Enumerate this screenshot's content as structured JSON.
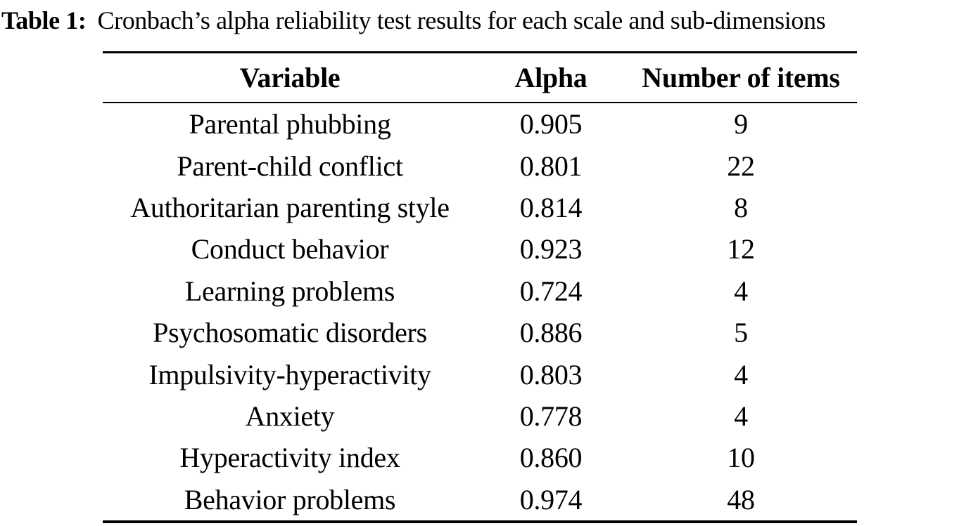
{
  "caption": {
    "label": "Table 1:",
    "text": "Cronbach’s alpha reliability test results for each scale and sub-dimensions"
  },
  "table": {
    "columns": [
      "Variable",
      "Alpha",
      "Number of items"
    ],
    "rows": [
      {
        "variable": "Parental phubbing",
        "alpha": "0.905",
        "items": "9"
      },
      {
        "variable": "Parent-child conflict",
        "alpha": "0.801",
        "items": "22"
      },
      {
        "variable": "Authoritarian parenting style",
        "alpha": "0.814",
        "items": "8"
      },
      {
        "variable": "Conduct behavior",
        "alpha": "0.923",
        "items": "12"
      },
      {
        "variable": "Learning problems",
        "alpha": "0.724",
        "items": "4"
      },
      {
        "variable": "Psychosomatic disorders",
        "alpha": "0.886",
        "items": "5"
      },
      {
        "variable": "Impulsivity-hyperactivity",
        "alpha": "0.803",
        "items": "4"
      },
      {
        "variable": "Anxiety",
        "alpha": "0.778",
        "items": "4"
      },
      {
        "variable": "Hyperactivity index",
        "alpha": "0.860",
        "items": "10"
      },
      {
        "variable": "Behavior problems",
        "alpha": "0.974",
        "items": "48"
      }
    ]
  },
  "colors": {
    "text": "#000000",
    "background": "#ffffff",
    "rule": "#000000"
  }
}
